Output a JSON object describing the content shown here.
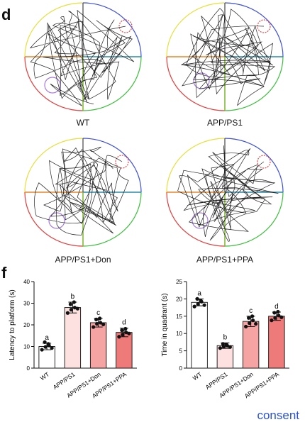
{
  "panel_d": {
    "letter": "d",
    "pools": [
      {
        "label": "WT"
      },
      {
        "label": "APP/PS1"
      },
      {
        "label": "APP/PS1+Don"
      },
      {
        "label": "APP/PS1+PPA"
      }
    ],
    "quadrant_colors": {
      "top_left": "#e6df3c",
      "top_right": "#3c4fd8",
      "bottom_left": "#e23c3c",
      "bottom_right": "#3cbf3c",
      "h_left": "#e8862a",
      "h_right": "#2a8aa8",
      "v_top": "#444444",
      "v_bottom": "#7ab52a"
    },
    "target_color": "#e04a4a",
    "start_color": "#a57ae0"
  },
  "panel_f": {
    "letter": "f"
  },
  "consent_text": "consent",
  "chart_data": [
    {
      "type": "bar",
      "ylabel": "Latency to platform (s)",
      "ylim": [
        0,
        40
      ],
      "yticks": [
        0,
        10,
        20,
        30,
        40
      ],
      "categories": [
        "WT",
        "APP/PS1",
        "APP/PS1+Don",
        "APP/PS1+PPA"
      ],
      "values": [
        10,
        28,
        21,
        16.5
      ],
      "errors": [
        1.5,
        2.5,
        2,
        2
      ],
      "letters": [
        "a",
        "b",
        "c",
        "d"
      ],
      "bar_colors": [
        "#ffffff",
        "#fde0e0",
        "#f6a3a3",
        "#ee7a7a"
      ],
      "points": [
        [
          8.5,
          9.8,
          10.5,
          12,
          11.2,
          9.3
        ],
        [
          25.5,
          27,
          28,
          29.5,
          30.5,
          27.5
        ],
        [
          19,
          20.5,
          21,
          22.5,
          23,
          20.2
        ],
        [
          14.5,
          15.5,
          16.5,
          17.5,
          18.2,
          16
        ]
      ]
    },
    {
      "type": "bar",
      "ylabel": "Time in quadrant (s)",
      "ylim": [
        0,
        25
      ],
      "yticks": [
        0,
        5,
        10,
        15,
        20,
        25
      ],
      "categories": [
        "WT",
        "APP/PS1",
        "APP/PS1+Don",
        "APP/PS1+PPA"
      ],
      "values": [
        19,
        6.5,
        13.5,
        15
      ],
      "errors": [
        1,
        0.8,
        1.5,
        1.2
      ],
      "letters": [
        "a",
        "b",
        "c",
        "d"
      ],
      "bar_colors": [
        "#ffffff",
        "#fde0e0",
        "#f6a3a3",
        "#ee7a7a"
      ],
      "points": [
        [
          17.8,
          18.5,
          19.2,
          20,
          19.5,
          18.2
        ],
        [
          5.8,
          6.2,
          6.5,
          7,
          6.8,
          6.1
        ],
        [
          12,
          13,
          13.8,
          14.5,
          15,
          12.8
        ],
        [
          13.8,
          14.5,
          15.2,
          16,
          16.3,
          14.7
        ]
      ]
    }
  ]
}
